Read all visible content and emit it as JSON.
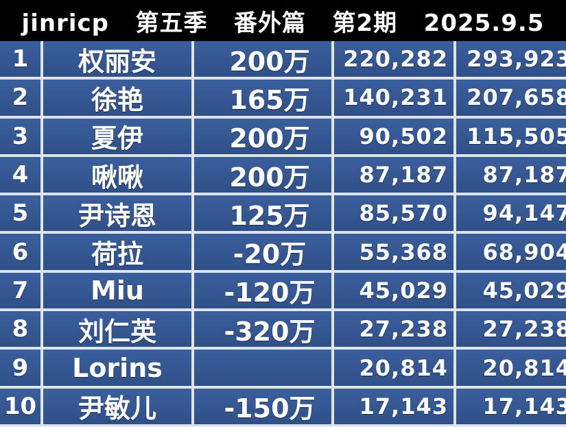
{
  "header": {
    "title": "jinricp   第五季   番外篇   第2期   2025.9.5"
  },
  "colors": {
    "header_bg": "#000000",
    "cell_bg": "#34589a",
    "text": "#ffffff"
  },
  "rows": [
    {
      "rank": "1",
      "name": "权丽安",
      "amount": "200万",
      "value1": "220,282",
      "value2": "293,923"
    },
    {
      "rank": "2",
      "name": "徐艳",
      "amount": "165万",
      "value1": "140,231",
      "value2": "207,658"
    },
    {
      "rank": "3",
      "name": "夏伊",
      "amount": "200万",
      "value1": "90,502",
      "value2": "115,505"
    },
    {
      "rank": "4",
      "name": "啾啾",
      "amount": "200万",
      "value1": "87,187",
      "value2": "87,187"
    },
    {
      "rank": "5",
      "name": "尹诗恩",
      "amount": "125万",
      "value1": "85,570",
      "value2": "94,147"
    },
    {
      "rank": "6",
      "name": "荷拉",
      "amount": "-20万",
      "value1": "55,368",
      "value2": "68,904"
    },
    {
      "rank": "7",
      "name": "Miu",
      "amount": "-120万",
      "value1": "45,029",
      "value2": "45,029"
    },
    {
      "rank": "8",
      "name": "刘仁英",
      "amount": "-320万",
      "value1": "27,238",
      "value2": "27,238"
    },
    {
      "rank": "9",
      "name": "Lorins",
      "amount": "",
      "value1": "20,814",
      "value2": "20,814"
    },
    {
      "rank": "10",
      "name": "尹敏儿",
      "amount": "-150万",
      "value1": "17,143",
      "value2": "17,143"
    }
  ]
}
